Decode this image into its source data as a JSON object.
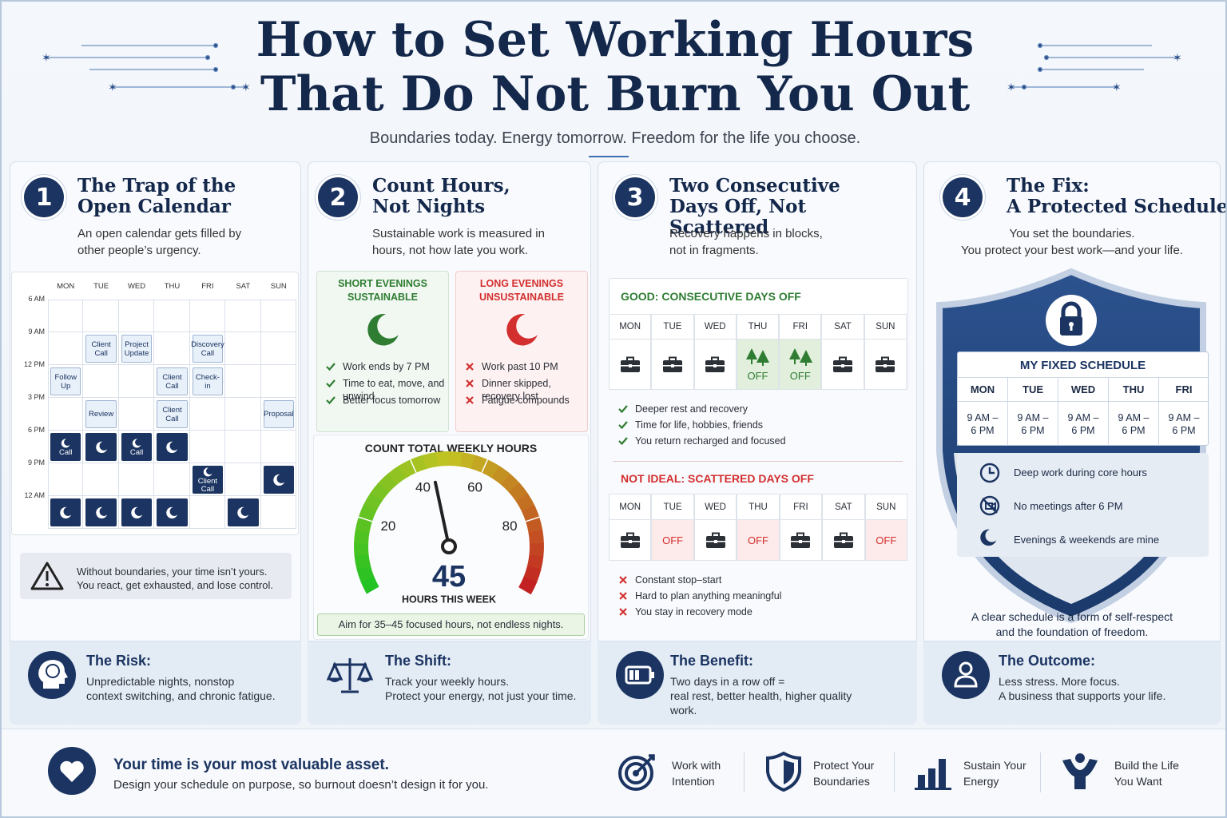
{
  "header": {
    "title": [
      "How to Set Working Hours",
      "That Do Not Burn You Out"
    ],
    "subtitle": "Boundaries today. Energy tomorrow. Freedom for the life you choose."
  },
  "sections": [
    {
      "number": 1,
      "title": [
        "The Trap of the",
        "Open Calendar"
      ],
      "text": [
        "An open calendar gets filled by",
        "other people’s urgency."
      ],
      "calendar": {
        "days": [
          "MON",
          "TUE",
          "WED",
          "THU",
          "FRI",
          "SAT",
          "SUN"
        ],
        "times": [
          "6 AM",
          "9 AM",
          "12 PM",
          "3 PM",
          "6 PM",
          "9 PM",
          "12 AM"
        ],
        "rows": [
          [
            null,
            null,
            null,
            null,
            null,
            null,
            null
          ],
          [
            null,
            "Client Call",
            "Project Update",
            null,
            "Discovery Call",
            null,
            null
          ],
          [
            "Follow Up",
            null,
            null,
            "Client Call",
            "Check-in",
            null,
            null
          ],
          [
            null,
            "Review",
            null,
            "Client Call",
            null,
            null,
            "Proposal"
          ],
          [
            {
              "night": true,
              "text": "Call"
            },
            {
              "night": true
            },
            {
              "night": true,
              "text": "Call"
            },
            {
              "night": true
            },
            null,
            null,
            null
          ],
          [
            null,
            null,
            null,
            null,
            {
              "night": true,
              "text": "Client Call"
            },
            null,
            {
              "night": true
            }
          ],
          [
            {
              "night": true
            },
            {
              "night": true
            },
            {
              "night": true
            },
            {
              "night": true
            },
            null,
            {
              "night": true
            },
            null
          ]
        ]
      },
      "warning": [
        "Without boundaries, your time isn’t yours.",
        "You react, get exhausted, and lose control."
      ],
      "callout": {
        "title": "The Risk:",
        "lines": [
          "Unpredictable nights, nonstop",
          "context switching, and chronic fatigue."
        ]
      }
    },
    {
      "number": 2,
      "title": [
        "Count Hours,",
        "Not Nights"
      ],
      "text": [
        "Sustainable work is measured in",
        "hours, not how late you work."
      ],
      "short": {
        "title": "SHORT EVENINGS",
        "status": "SUSTAINABLE",
        "items": [
          "Work ends by 7 PM",
          "Time to eat, move, and unwind",
          "Better focus tomorrow"
        ]
      },
      "long": {
        "title": "LONG EVENINGS",
        "status": "UNSUSTAINABLE",
        "items": [
          "Work past 10 PM",
          "Dinner skipped, recovery lost",
          "Fatigue compounds"
        ]
      },
      "gauge": {
        "title": "COUNT TOTAL WEEKLY HOURS",
        "range": [
          0,
          100
        ],
        "ticks": [
          20,
          40,
          60,
          80
        ],
        "value": 45,
        "caption": "HOURS THIS WEEK"
      },
      "note": "Aim for 35–45 focused hours, not endless nights.",
      "callout": {
        "title": "The Shift:",
        "lines": [
          "Track your weekly hours.",
          "Protect your energy, not just your time."
        ]
      }
    },
    {
      "number": 3,
      "title": [
        "Two Consecutive",
        "Days Off, Not Scattered"
      ],
      "text": [
        "Recovery happens in blocks,",
        "not in fragments."
      ],
      "good": {
        "title": "GOOD: CONSECUTIVE DAYS OFF",
        "days": [
          "MON",
          "TUE",
          "WED",
          "THU",
          "FRI",
          "SAT",
          "SUN"
        ],
        "cells": [
          null,
          null,
          null,
          "OFF",
          "OFF",
          null,
          null
        ],
        "points": [
          "Deeper rest and recovery",
          "Time for life, hobbies, friends",
          "You return recharged and focused"
        ]
      },
      "bad": {
        "title": "NOT IDEAL: SCATTERED DAYS OFF",
        "days": [
          "MON",
          "TUE",
          "WED",
          "THU",
          "FRI",
          "SAT",
          "SUN"
        ],
        "cells": [
          null,
          "OFF",
          null,
          "OFF",
          null,
          null,
          "OFF"
        ],
        "points": [
          "Constant stop–start",
          "Hard to plan anything meaningful",
          "You stay in recovery mode"
        ]
      },
      "callout": {
        "title": "The Benefit:",
        "lines": [
          "Two days in a row off =",
          "real rest, better health, higher quality",
          "work."
        ]
      }
    },
    {
      "number": 4,
      "title": [
        "The Fix:",
        "A Protected Schedule"
      ],
      "text": [
        "You set the boundaries.",
        "You protect your best work—and your life."
      ],
      "schedule": {
        "title": "MY FIXED SCHEDULE",
        "days": [
          "MON",
          "TUE",
          "WED",
          "THU",
          "FRI"
        ],
        "hours": [
          "9 AM – 6 PM",
          "9 AM – 6 PM",
          "9 AM – 6 PM",
          "9 AM – 6 PM",
          "9 AM – 6 PM"
        ]
      },
      "rules": [
        "Deep work during core hours",
        "No meetings after 6 PM",
        "Evenings & weekends are mine"
      ],
      "caption": [
        "A clear schedule is a form of self-respect",
        "and the foundation of freedom."
      ],
      "callout": {
        "title": "The Outcome:",
        "lines": [
          "Less stress. More focus.",
          "A business that supports your life."
        ]
      }
    }
  ],
  "footer": {
    "title": "Your time is your most valuable asset.",
    "text": "Design your schedule on purpose, so burnout doesn’t design it for you.",
    "items": [
      [
        "Work with",
        "Intention"
      ],
      [
        "Protect Your",
        "Boundaries"
      ],
      [
        "Sustain Your",
        "Energy"
      ],
      [
        "Build the Life",
        "You Want"
      ]
    ]
  }
}
